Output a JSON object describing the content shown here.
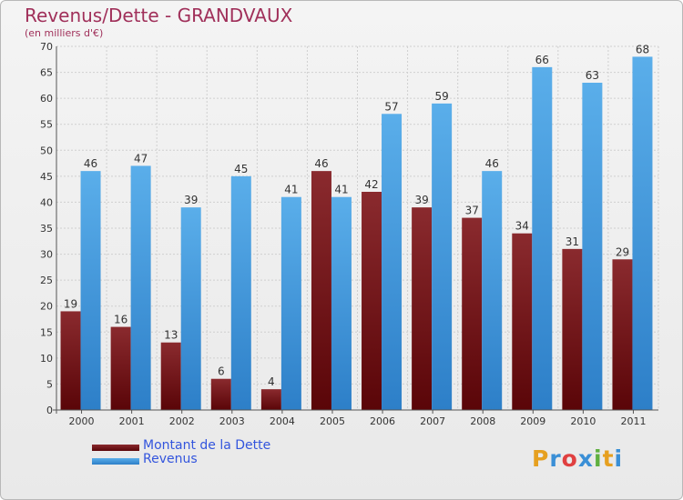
{
  "header": {
    "title": "Revenus/Dette - GRANDVAUX",
    "subtitle": "(en milliers d'€)"
  },
  "legend": {
    "items": [
      {
        "label": "Montant de la Dette",
        "color": "#6b0f12"
      },
      {
        "label": "Revenus",
        "color": "#4aa0e6"
      }
    ]
  },
  "logo": {
    "letters": [
      "P",
      "r",
      "o",
      "x",
      "i",
      "t",
      "i"
    ],
    "colors": [
      "#e6a020",
      "#3a8fd6",
      "#e04040",
      "#3a8fd6",
      "#60b040",
      "#e6a020",
      "#3a8fd6"
    ]
  },
  "chart_data": {
    "type": "bar",
    "title": "Revenus/Dette - GRANDVAUX",
    "subtitle": "(en milliers d'€)",
    "categories": [
      "2000",
      "2001",
      "2002",
      "2003",
      "2004",
      "2005",
      "2006",
      "2007",
      "2008",
      "2009",
      "2010",
      "2011"
    ],
    "series": [
      {
        "name": "Montant de la Dette",
        "color": "#7a1e22",
        "values": [
          19,
          16,
          13,
          6,
          4,
          46,
          42,
          39,
          37,
          34,
          31,
          29
        ]
      },
      {
        "name": "Revenus",
        "color": "#4aa0e6",
        "values": [
          46,
          47,
          39,
          45,
          41,
          41,
          57,
          59,
          46,
          66,
          63,
          68
        ]
      }
    ],
    "yticks": [
      0,
      5,
      10,
      15,
      20,
      25,
      30,
      35,
      40,
      45,
      50,
      55,
      60,
      65,
      70
    ],
    "ylim": [
      0,
      70
    ],
    "grid": true,
    "legend_position": "bottom-left"
  }
}
